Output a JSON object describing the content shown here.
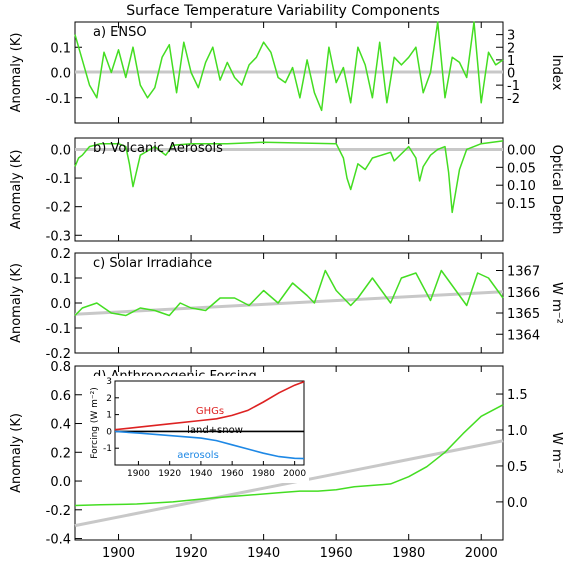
{
  "chart_data": {
    "type": "line",
    "title": "Surface Temperature Variability Components",
    "x_axis": {
      "xlim": [
        1888,
        2006
      ],
      "ticks": [
        1900,
        1920,
        1940,
        1960,
        1980,
        2000
      ],
      "tick_labels": [
        "1900",
        "1920",
        "1940",
        "1960",
        "1980",
        "2000"
      ]
    },
    "color": "#44dd22",
    "panels": [
      {
        "id": "enso",
        "title": "a) ENSO",
        "ylabel": "Anomaly (K)",
        "ylim": [
          -0.2,
          0.2
        ],
        "yticks": [
          -0.1,
          0.0,
          0.1
        ],
        "ytick_labels": [
          "-0.1",
          "0.0",
          "0.1"
        ],
        "right_label": "Index",
        "right_ticks": [
          {
            "pos": 0.15,
            "label": "3"
          },
          {
            "pos": 0.1,
            "label": "2"
          },
          {
            "pos": 0.05,
            "label": "1"
          },
          {
            "pos": 0.0,
            "label": "0"
          },
          {
            "pos": -0.05,
            "label": "-1"
          },
          {
            "pos": -0.1,
            "label": "-2"
          }
        ],
        "trend": [
          [
            1888,
            0.002
          ],
          [
            2006,
            0.002
          ]
        ],
        "series": [
          {
            "x": [
              1888,
              1890,
              1892,
              1894,
              1896,
              1898,
              1900,
              1902,
              1904,
              1906,
              1908,
              1910,
              1912,
              1914,
              1916,
              1918,
              1920,
              1922,
              1924,
              1926,
              1928,
              1930,
              1932,
              1934,
              1936,
              1938,
              1940,
              1942,
              1944,
              1946,
              1948,
              1950,
              1952,
              1954,
              1956,
              1958,
              1960,
              1962,
              1964,
              1966,
              1968,
              1970,
              1972,
              1974,
              1976,
              1978,
              1980,
              1982,
              1984,
              1986,
              1988,
              1990,
              1992,
              1994,
              1996,
              1998,
              2000,
              2002,
              2004,
              2006
            ],
            "y": [
              0.15,
              0.05,
              -0.05,
              -0.1,
              0.08,
              0.0,
              0.09,
              -0.02,
              0.1,
              -0.05,
              -0.1,
              -0.06,
              0.06,
              0.11,
              -0.08,
              0.12,
              0.0,
              -0.06,
              0.04,
              0.1,
              -0.03,
              0.04,
              -0.02,
              -0.05,
              0.03,
              0.06,
              0.12,
              0.08,
              -0.02,
              -0.04,
              0.02,
              -0.1,
              0.05,
              -0.08,
              -0.15,
              0.1,
              -0.04,
              0.02,
              -0.12,
              0.1,
              0.03,
              -0.1,
              0.12,
              -0.12,
              0.06,
              0.03,
              0.06,
              0.1,
              -0.08,
              0.0,
              0.2,
              -0.1,
              0.06,
              0.04,
              -0.02,
              0.2,
              -0.12,
              0.08,
              0.03,
              0.05
            ]
          }
        ]
      },
      {
        "id": "volcanic",
        "title": "b) Volcanic Aerosols",
        "ylabel": "Anomaly (K)",
        "ylim": [
          -0.32,
          0.04
        ],
        "yticks": [
          -0.3,
          -0.2,
          -0.1,
          0.0
        ],
        "ytick_labels": [
          "-0.3",
          "-0.2",
          "-0.1",
          "0.0"
        ],
        "right_label": "Optical Depth",
        "right_ticks": [
          {
            "pos": 0.0,
            "label": "0.00"
          },
          {
            "pos": -0.0625,
            "label": "0.05"
          },
          {
            "pos": -0.125,
            "label": "0.10"
          },
          {
            "pos": -0.1875,
            "label": "0.15"
          }
        ],
        "trend": [
          [
            1888,
            0.0
          ],
          [
            2006,
            0.0
          ]
        ],
        "series": [
          {
            "x": [
              1888,
              1889,
              1890,
              1892,
              1895,
              1900,
              1902,
              1903,
              1904,
              1906,
              1910,
              1913,
              1915,
              1920,
              1930,
              1940,
              1960,
              1962,
              1963,
              1964,
              1966,
              1968,
              1970,
              1975,
              1976,
              1980,
              1982,
              1983,
              1984,
              1986,
              1988,
              1990,
              1991,
              1992,
              1994,
              1996,
              2000,
              2006
            ],
            "y": [
              -0.06,
              -0.03,
              -0.02,
              0.01,
              0.02,
              0.02,
              0.01,
              -0.05,
              -0.13,
              -0.02,
              0.01,
              -0.02,
              0.015,
              0.02,
              0.02,
              0.025,
              0.02,
              -0.03,
              -0.1,
              -0.14,
              -0.05,
              -0.07,
              -0.03,
              -0.01,
              -0.04,
              0.01,
              -0.03,
              -0.11,
              -0.06,
              -0.02,
              0.0,
              0.01,
              -0.08,
              -0.22,
              -0.07,
              0.0,
              0.02,
              0.03
            ]
          }
        ]
      },
      {
        "id": "solar",
        "title": "c) Solar Irradiance",
        "ylabel": "Anomaly (K)",
        "ylim": [
          -0.2,
          0.2
        ],
        "yticks": [
          -0.2,
          -0.1,
          0.0,
          0.1,
          0.2
        ],
        "ytick_labels": [
          "-0.2",
          "-0.1",
          "0.0",
          "0.1",
          "0.2"
        ],
        "right_label": "W m⁻²",
        "right_ticks": [
          {
            "pos": 0.13,
            "label": "1367"
          },
          {
            "pos": 0.045,
            "label": "1366"
          },
          {
            "pos": -0.04,
            "label": "1365"
          },
          {
            "pos": -0.125,
            "label": "1364"
          }
        ],
        "trend": [
          [
            1888,
            -0.045
          ],
          [
            2006,
            0.045
          ]
        ],
        "series": [
          {
            "x": [
              1888,
              1890,
              1894,
              1898,
              1902,
              1906,
              1910,
              1914,
              1917,
              1920,
              1924,
              1928,
              1932,
              1936,
              1940,
              1944,
              1948,
              1952,
              1954,
              1957,
              1960,
              1964,
              1966,
              1970,
              1975,
              1978,
              1982,
              1986,
              1989,
              1992,
              1996,
              1999,
              2002,
              2006
            ],
            "y": [
              -0.05,
              -0.02,
              0.0,
              -0.04,
              -0.05,
              -0.02,
              -0.03,
              -0.05,
              0.0,
              -0.02,
              -0.03,
              0.02,
              0.02,
              -0.01,
              0.05,
              0.0,
              0.08,
              0.03,
              0.0,
              0.13,
              0.05,
              -0.01,
              0.02,
              0.1,
              0.0,
              0.1,
              0.12,
              0.01,
              0.13,
              0.07,
              -0.01,
              0.12,
              0.1,
              0.02
            ]
          }
        ]
      },
      {
        "id": "anthropogenic",
        "title": "d) Anthropogenic Forcing",
        "ylabel": "Anomaly (K)",
        "ylim": [
          -0.41,
          0.8
        ],
        "yticks": [
          -0.4,
          -0.2,
          0.0,
          0.2,
          0.4,
          0.6,
          0.8
        ],
        "ytick_labels": [
          "-0.4",
          "-0.2",
          "0.0",
          "0.2",
          "0.4",
          "0.6",
          "0.8"
        ],
        "right_label": "W m⁻²",
        "right_ticks": [
          {
            "pos": -0.145,
            "label": "0.0"
          },
          {
            "pos": 0.105,
            "label": "0.5"
          },
          {
            "pos": 0.355,
            "label": "1.0"
          },
          {
            "pos": 0.605,
            "label": "1.5"
          }
        ],
        "trend": [
          [
            1888,
            -0.31
          ],
          [
            2006,
            0.28
          ]
        ],
        "series": [
          {
            "x": [
              1888,
              1895,
              1905,
              1915,
              1925,
              1935,
              1945,
              1950,
              1955,
              1960,
              1965,
              1970,
              1975,
              1980,
              1985,
              1990,
              1995,
              2000,
              2006
            ],
            "y": [
              -0.17,
              -0.165,
              -0.16,
              -0.145,
              -0.12,
              -0.1,
              -0.08,
              -0.07,
              -0.07,
              -0.06,
              -0.04,
              -0.03,
              -0.02,
              0.03,
              0.1,
              0.2,
              0.33,
              0.45,
              0.53
            ]
          }
        ],
        "inset": {
          "ylabel": "Forcing (W m⁻²)",
          "xlim": [
            1885,
            2006
          ],
          "ylim": [
            -2,
            3
          ],
          "xticks": [
            1900,
            1920,
            1940,
            1960,
            1980,
            2000
          ],
          "xtick_labels": [
            "1900",
            "1920",
            "1940",
            "1960",
            "1980",
            "2000"
          ],
          "yticks": [
            -1,
            0,
            1,
            2,
            3
          ],
          "ytick_labels": [
            "-1",
            "0",
            "1",
            "2",
            "3"
          ],
          "series": [
            {
              "name": "GHGs",
              "color": "#dd2222",
              "x": [
                1885,
                1900,
                1920,
                1940,
                1950,
                1960,
                1970,
                1980,
                1990,
                2000,
                2006
              ],
              "y": [
                0.1,
                0.25,
                0.45,
                0.65,
                0.75,
                0.95,
                1.25,
                1.75,
                2.3,
                2.75,
                2.95
              ]
            },
            {
              "name": "land+snow",
              "color": "#000000",
              "x": [
                1885,
                2006
              ],
              "y": [
                0.0,
                0.0
              ]
            },
            {
              "name": "aerosols",
              "color": "#1e88e5",
              "x": [
                1885,
                1900,
                1920,
                1940,
                1950,
                1960,
                1970,
                1980,
                1990,
                2000,
                2006
              ],
              "y": [
                0.0,
                -0.1,
                -0.25,
                -0.4,
                -0.55,
                -0.8,
                -1.05,
                -1.3,
                -1.5,
                -1.6,
                -1.62
              ]
            }
          ]
        }
      }
    ]
  }
}
